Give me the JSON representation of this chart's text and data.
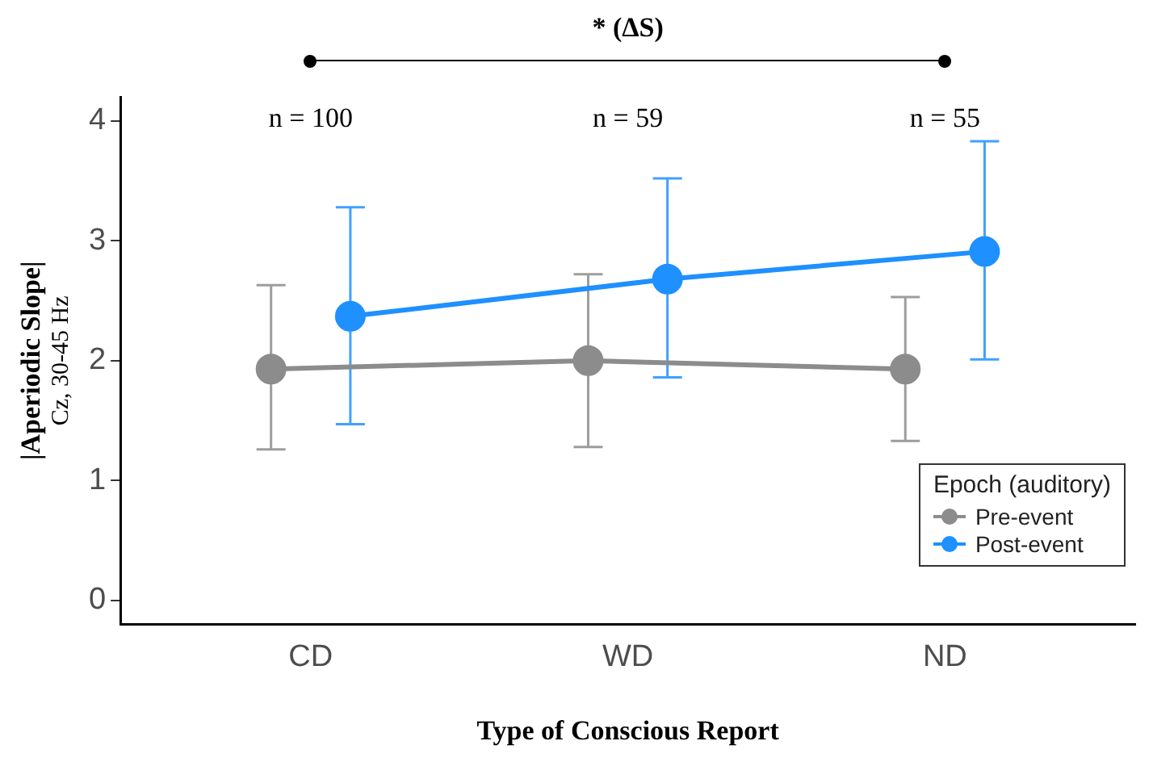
{
  "chart_data": {
    "type": "line",
    "xlabel": "Type of Conscious Report",
    "ylabel": "|Aperiodic Slope|\nCz, 30-45 Hz",
    "categories": [
      "CD",
      "WD",
      "ND"
    ],
    "series": [
      {
        "name": "Pre-event",
        "color": "#8c8c8c",
        "values": [
          1.93,
          2.0,
          1.93
        ],
        "errors": [
          [
            1.26,
            2.63
          ],
          [
            1.28,
            2.72
          ],
          [
            1.33,
            2.53
          ]
        ]
      },
      {
        "name": "Post-event",
        "color": "#1e90ff",
        "values": [
          2.37,
          2.68,
          2.91
        ],
        "errors": [
          [
            1.47,
            3.28
          ],
          [
            1.86,
            3.52
          ],
          [
            2.01,
            3.83
          ]
        ]
      }
    ],
    "ylim": [
      -0.2,
      4.2
    ],
    "yticks": [
      0,
      1,
      2,
      3,
      4
    ],
    "grid": false,
    "legend": "bottom right",
    "legend_title": "Epoch (auditory)",
    "marker": "circle",
    "line_style": "solid",
    "annotations": [
      "* (ΔS)",
      "n = 100",
      "n = 59",
      "n = 55"
    ]
  }
}
